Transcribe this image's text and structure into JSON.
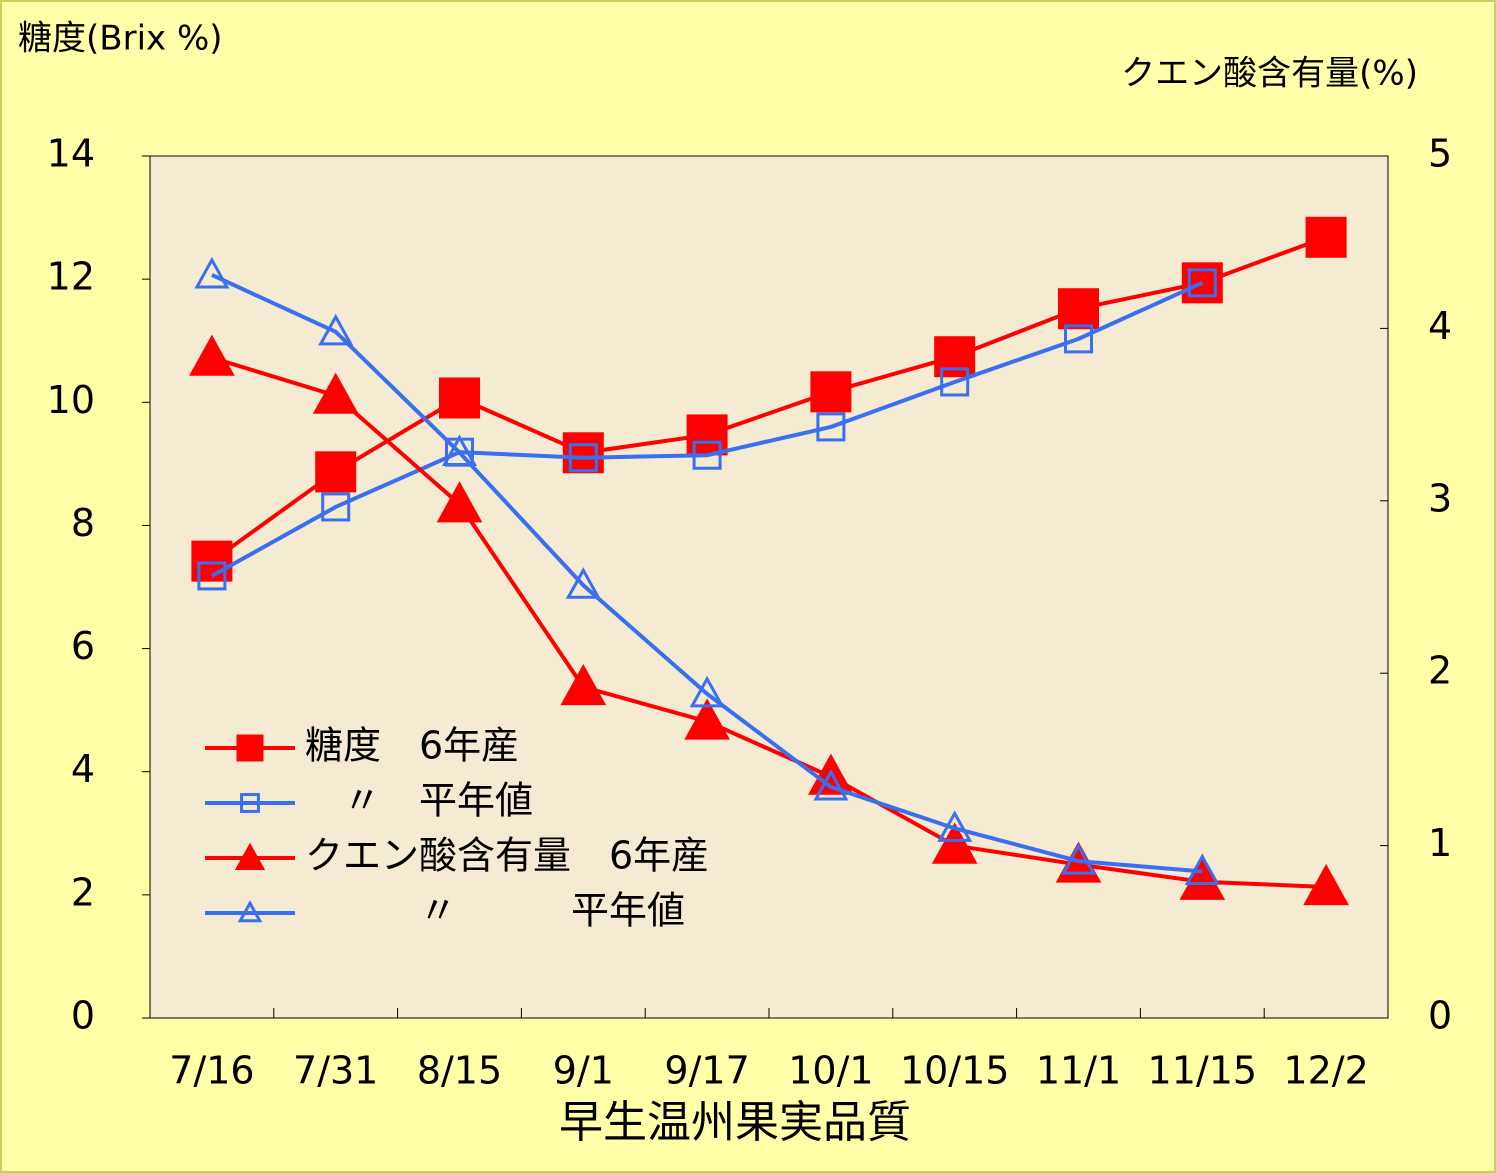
{
  "chart_data": {
    "type": "line",
    "title": "早生温州果実品質",
    "y_label": "糖度(Brix %)",
    "y2_label": "クエン酸含有量(%)",
    "categories": [
      "7/16",
      "7/31",
      "8/15",
      "9/1",
      "9/17",
      "10/1",
      "10/15",
      "11/1",
      "11/15",
      "12/2"
    ],
    "series": [
      {
        "name": "糖度　6年産",
        "color": "#ff0000",
        "marker": "square",
        "filled": true,
        "values": [
          7.42,
          8.87,
          10.07,
          9.18,
          9.47,
          10.17,
          10.74,
          11.52,
          11.94,
          12.68
        ]
      },
      {
        "name": "　〃　平年値",
        "color": "#3a6ff0",
        "marker": "square",
        "filled": false,
        "values": [
          7.18,
          8.3,
          9.19,
          9.1,
          9.14,
          9.6,
          10.33,
          11.03,
          11.94,
          null
        ]
      },
      {
        "name": "クエン酸含有量　6年産",
        "color": "#ff0000",
        "marker": "triangle",
        "filled": true,
        "axis": "y2",
        "values": [
          3.83,
          3.61,
          2.98,
          1.92,
          1.72,
          1.4,
          1.0,
          0.89,
          0.79,
          0.76
        ]
      },
      {
        "name": "　　　〃　　　平年値",
        "color": "#3a6ff0",
        "marker": "triangle",
        "filled": false,
        "axis": "y2",
        "values": [
          4.31,
          3.98,
          3.28,
          2.51,
          1.88,
          1.34,
          1.1,
          0.91,
          0.85,
          null
        ]
      }
    ],
    "ylim": [
      0,
      14
    ],
    "yticks": [
      0,
      2,
      4,
      6,
      8,
      10,
      12,
      14
    ],
    "y2lim": [
      0,
      5
    ],
    "y2ticks": [
      0,
      1,
      2,
      3,
      4,
      5
    ],
    "legend": "lower left"
  }
}
